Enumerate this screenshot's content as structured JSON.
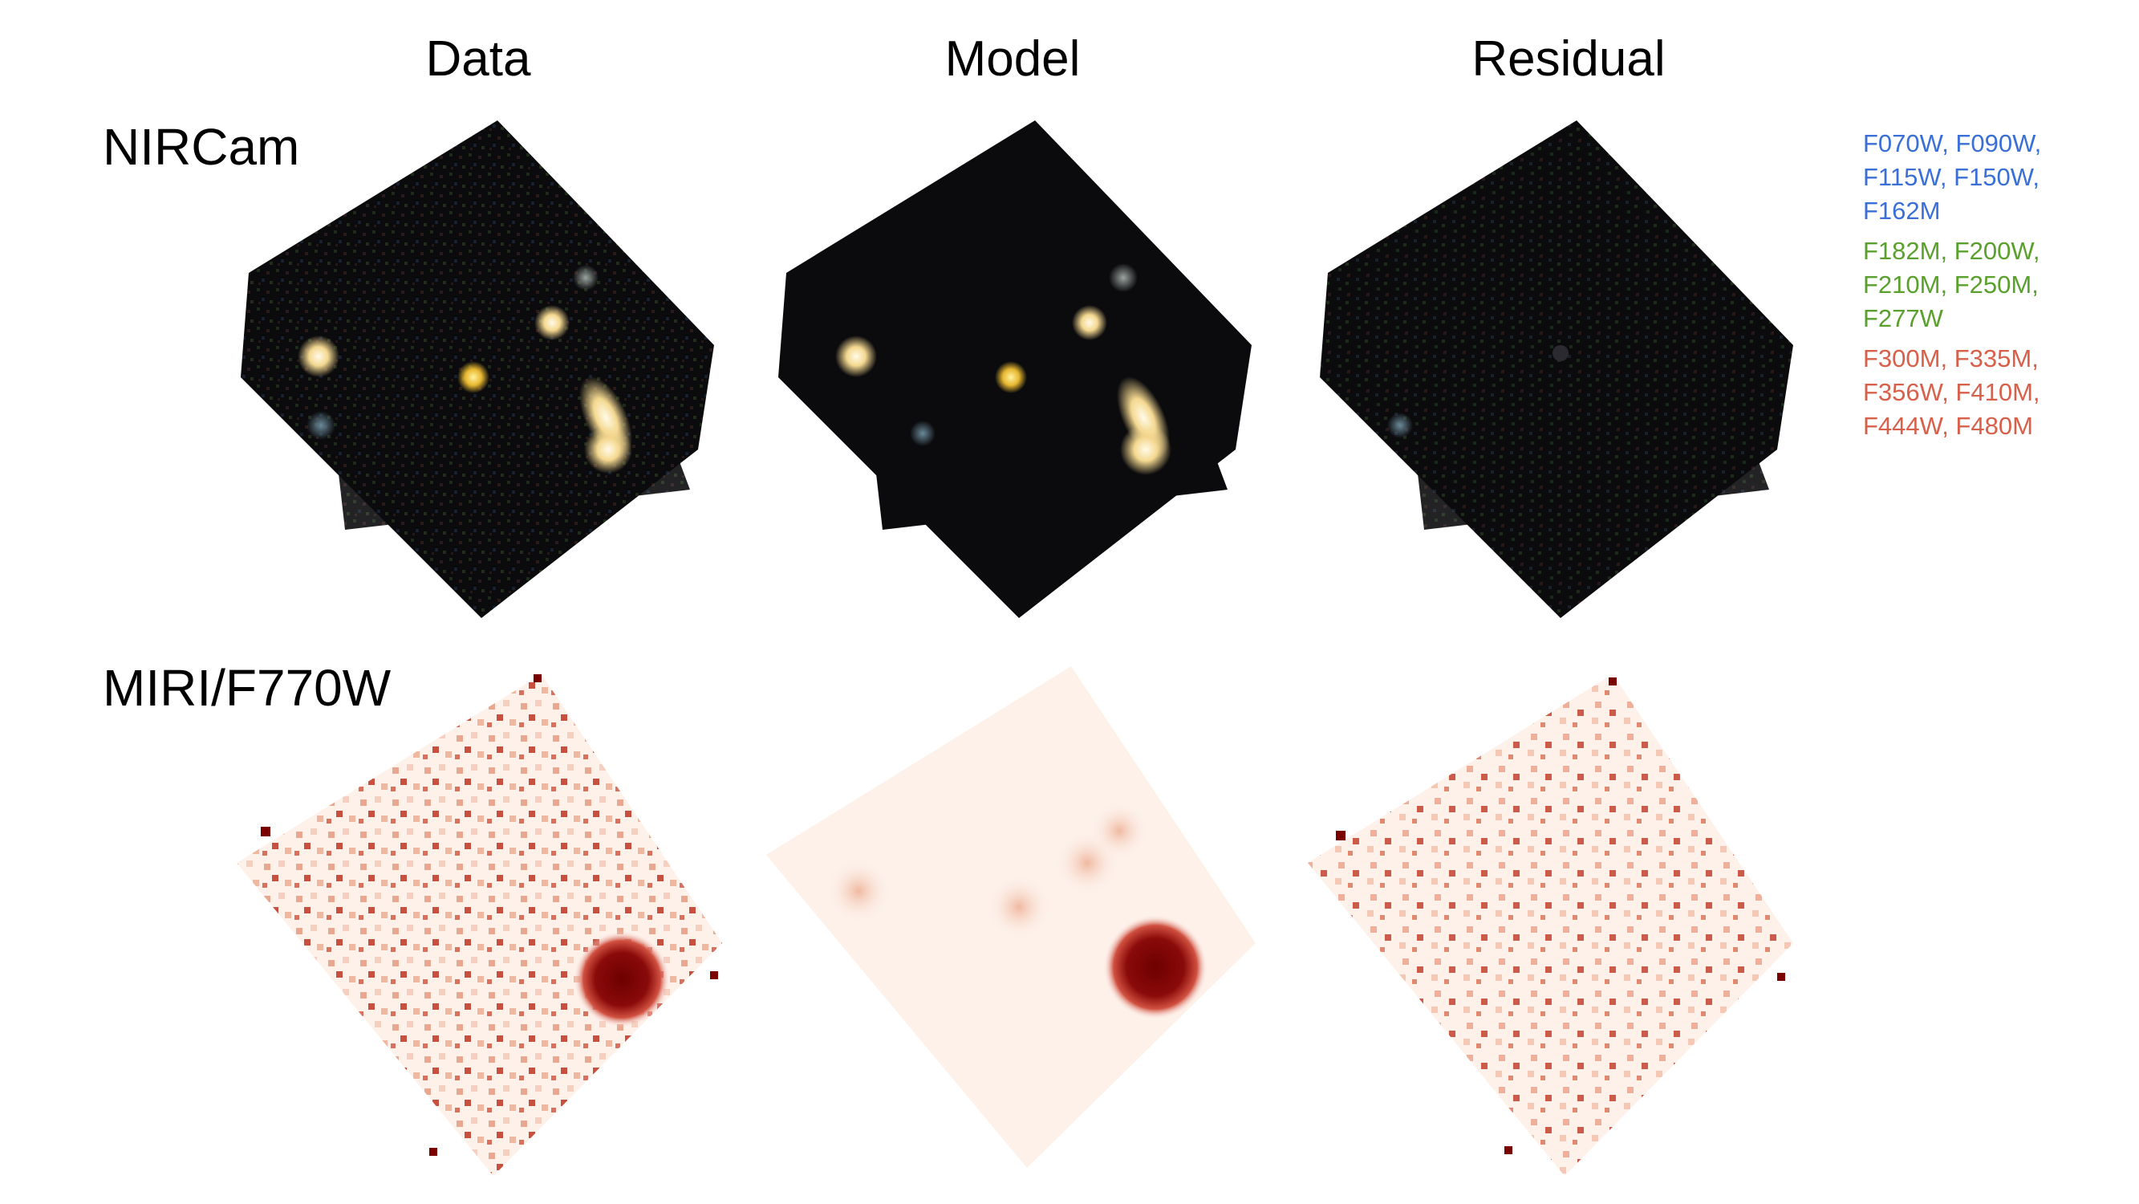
{
  "columns": [
    "Data",
    "Model",
    "Residual"
  ],
  "rows": [
    "NIRCam",
    "MIRI/F770W"
  ],
  "filter_groups": [
    {
      "color": "#3a6fd8",
      "lines": [
        "F070W, F090W,",
        "F115W, F150W,",
        "F162M"
      ]
    },
    {
      "color": "#5aa02c",
      "lines": [
        "F182M, F200W,",
        "F210M, F250M,",
        "F277W"
      ]
    },
    {
      "color": "#d8604a",
      "lines": [
        "F300M, F335M,",
        "F356W, F410M,",
        "F444W, F480M"
      ]
    }
  ],
  "colors": {
    "nircam_bg": "#0b0b0d",
    "miri_bg": "#fdf1ea",
    "miri_dark": "#7a0000"
  }
}
